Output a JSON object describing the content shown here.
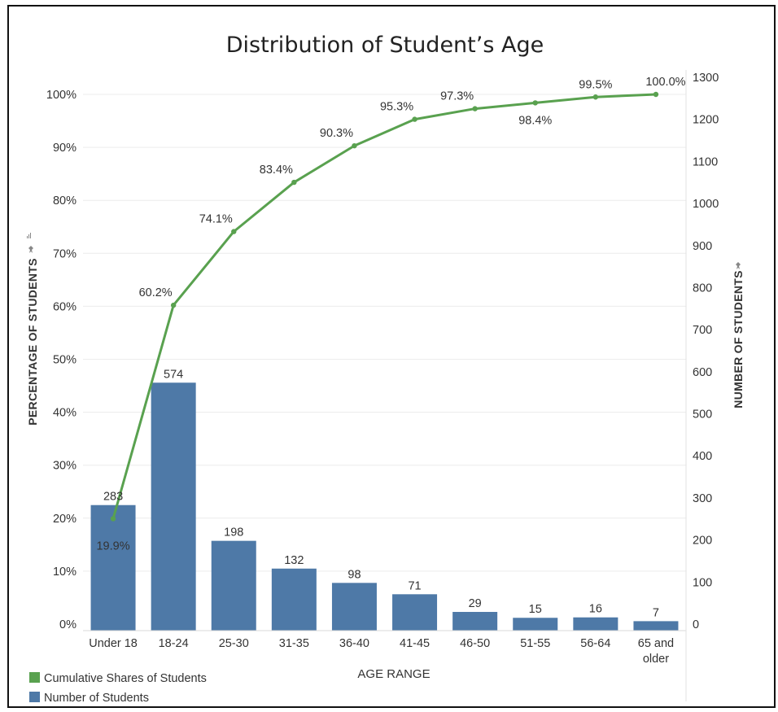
{
  "chart_data": {
    "type": "bar",
    "title": "Distribution of Student’s Age",
    "xlabel": "AGE RANGE",
    "ylabel_left": "PERCENTAGE OF STUDENTS",
    "ylabel_right": "NUMBER OF STUDENTS",
    "categories": [
      "Under 18",
      "18-24",
      "25-30",
      "31-35",
      "36-40",
      "41-45",
      "46-50",
      "51-55",
      "56-64",
      "65 and older"
    ],
    "series": [
      {
        "name": "Number of Students",
        "type": "bar",
        "axis": "right",
        "color": "#4e79a7",
        "values": [
          283,
          574,
          198,
          132,
          98,
          71,
          29,
          15,
          16,
          7
        ],
        "labels": [
          "283",
          "574",
          "198",
          "132",
          "98",
          "71",
          "29",
          "15",
          "16",
          "7"
        ]
      },
      {
        "name": "Cumulative Shares of Students",
        "type": "line",
        "axis": "left",
        "color": "#59a14f",
        "values": [
          19.9,
          60.2,
          74.1,
          83.4,
          90.3,
          95.3,
          97.3,
          98.4,
          99.5,
          100.0
        ],
        "labels": [
          "19.9%",
          "60.2%",
          "74.1%",
          "83.4%",
          "90.3%",
          "95.3%",
          "97.3%",
          "98.4%",
          "99.5%",
          "100.0%"
        ]
      }
    ],
    "y_left": {
      "ylim": [
        0,
        100
      ],
      "ticks": [
        0,
        10,
        20,
        30,
        40,
        50,
        60,
        70,
        80,
        90,
        100
      ],
      "tick_labels": [
        "0%",
        "10%",
        "20%",
        "30%",
        "40%",
        "50%",
        "60%",
        "70%",
        "80%",
        "90%",
        "100%"
      ]
    },
    "y_right": {
      "ylim": [
        0,
        1300
      ],
      "ticks": [
        0,
        100,
        200,
        300,
        400,
        500,
        600,
        700,
        800,
        900,
        1000,
        1100,
        1200,
        1300
      ],
      "tick_labels": [
        "0",
        "100",
        "200",
        "300",
        "400",
        "500",
        "600",
        "700",
        "800",
        "900",
        "1000",
        "1100",
        "1200",
        "1300"
      ]
    },
    "legend": [
      "Cumulative Shares of Students",
      "Number of Students"
    ],
    "legend_position": "bottom-left",
    "grid": true
  }
}
